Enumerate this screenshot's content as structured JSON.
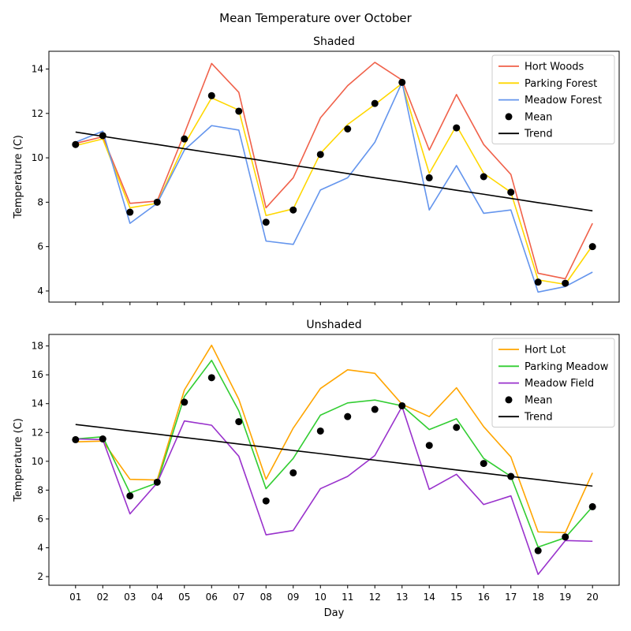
{
  "figure": {
    "title": "Mean Temperature over October"
  },
  "chart_data": [
    {
      "type": "line",
      "title": "Shaded",
      "xlabel": "",
      "ylabel": "Temperature (C)",
      "ylim": [
        3.5,
        14.8
      ],
      "yticks": [
        4,
        6,
        8,
        10,
        12,
        14
      ],
      "legend_position": "top-right",
      "x": [
        "01",
        "02",
        "03",
        "04",
        "05",
        "06",
        "07",
        "08",
        "09",
        "10",
        "11",
        "12",
        "13",
        "14",
        "15",
        "16",
        "17",
        "18",
        "19",
        "20"
      ],
      "series": [
        {
          "name": "Hort Woods",
          "type": "line",
          "color": "#f0614a",
          "values": [
            10.65,
            10.95,
            7.95,
            8.05,
            11.1,
            14.25,
            12.95,
            7.75,
            9.1,
            11.8,
            13.25,
            14.3,
            13.5,
            10.35,
            12.85,
            10.6,
            9.25,
            4.8,
            4.55,
            7.05
          ]
        },
        {
          "name": "Parking Forest",
          "type": "line",
          "color": "#ffd700",
          "values": [
            10.55,
            10.85,
            7.75,
            7.95,
            10.6,
            12.7,
            12.15,
            7.4,
            7.7,
            10.2,
            11.5,
            12.4,
            13.35,
            9.3,
            11.45,
            9.3,
            8.45,
            4.5,
            4.3,
            6.05
          ]
        },
        {
          "name": "Meadow Forest",
          "type": "line",
          "color": "#6495ed",
          "values": [
            10.7,
            11.2,
            7.05,
            7.95,
            10.35,
            11.45,
            11.25,
            6.25,
            6.1,
            8.55,
            9.1,
            10.7,
            13.4,
            7.65,
            9.65,
            7.5,
            7.65,
            3.95,
            4.2,
            4.85
          ]
        },
        {
          "name": "Mean",
          "type": "scatter",
          "color": "#000000",
          "values": [
            10.6,
            11.0,
            7.55,
            8.0,
            10.85,
            12.8,
            12.1,
            7.1,
            7.65,
            10.15,
            11.3,
            12.45,
            13.4,
            9.1,
            11.35,
            9.15,
            8.45,
            4.4,
            4.35,
            6.0
          ]
        },
        {
          "name": "Trend",
          "type": "line",
          "color": "#000000",
          "values": [
            11.16,
            10.97,
            10.78,
            10.6,
            10.41,
            10.22,
            10.04,
            9.85,
            9.66,
            9.48,
            9.29,
            9.1,
            8.92,
            8.73,
            8.54,
            8.36,
            8.17,
            7.98,
            7.8,
            7.61
          ]
        }
      ]
    },
    {
      "type": "line",
      "title": "Unshaded",
      "xlabel": "Day",
      "ylabel": "Temperature (C)",
      "ylim": [
        1.4,
        18.8
      ],
      "yticks": [
        2,
        4,
        6,
        8,
        10,
        12,
        14,
        16,
        18
      ],
      "legend_position": "top-right",
      "x": [
        "01",
        "02",
        "03",
        "04",
        "05",
        "06",
        "07",
        "08",
        "09",
        "10",
        "11",
        "12",
        "13",
        "14",
        "15",
        "16",
        "17",
        "18",
        "19",
        "20"
      ],
      "series": [
        {
          "name": "Hort Lot",
          "type": "line",
          "color": "#ffa500",
          "values": [
            11.35,
            11.4,
            8.75,
            8.7,
            14.95,
            18.05,
            14.3,
            8.75,
            12.3,
            15.05,
            16.35,
            16.1,
            13.95,
            13.1,
            15.1,
            12.4,
            10.3,
            5.1,
            5.05,
            9.2
          ]
        },
        {
          "name": "Parking Meadow",
          "type": "line",
          "color": "#32cd32",
          "values": [
            11.55,
            11.7,
            7.8,
            8.5,
            14.5,
            17.0,
            13.5,
            8.1,
            10.2,
            13.2,
            14.05,
            14.25,
            13.85,
            12.2,
            12.95,
            10.2,
            8.95,
            4.05,
            4.7,
            6.85
          ]
        },
        {
          "name": "Meadow Field",
          "type": "line",
          "color": "#9932cc",
          "values": [
            11.55,
            11.5,
            6.35,
            8.5,
            12.8,
            12.5,
            10.35,
            4.9,
            5.2,
            8.1,
            8.95,
            10.4,
            13.8,
            8.05,
            9.1,
            7.0,
            7.6,
            2.15,
            4.5,
            4.45
          ]
        },
        {
          "name": "Mean",
          "type": "scatter",
          "color": "#000000",
          "values": [
            11.5,
            11.55,
            7.6,
            8.55,
            14.1,
            15.8,
            12.75,
            7.25,
            9.2,
            12.1,
            13.1,
            13.6,
            13.85,
            11.1,
            12.35,
            9.85,
            8.95,
            3.8,
            4.75,
            6.85
          ]
        },
        {
          "name": "Trend",
          "type": "line",
          "color": "#000000",
          "values": [
            12.55,
            12.33,
            12.1,
            11.88,
            11.65,
            11.43,
            11.2,
            10.98,
            10.75,
            10.53,
            10.3,
            10.08,
            9.85,
            9.63,
            9.4,
            9.18,
            8.95,
            8.73,
            8.5,
            8.28
          ]
        }
      ]
    }
  ]
}
